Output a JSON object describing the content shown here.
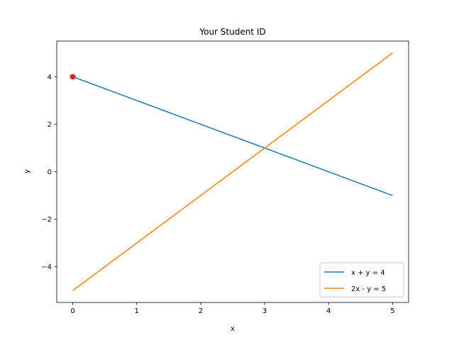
{
  "chart_data": {
    "type": "line",
    "title": "Your Student ID",
    "xlabel": "x",
    "ylabel": "y",
    "xlim": [
      -0.25,
      5.25
    ],
    "ylim": [
      -5.5,
      5.5
    ],
    "xticks": [
      0,
      1,
      2,
      3,
      4,
      5
    ],
    "yticks": [
      -4,
      -2,
      0,
      2,
      4
    ],
    "x_tick_labels": [
      "0",
      "1",
      "2",
      "3",
      "4",
      "5"
    ],
    "y_tick_labels": [
      "−4",
      "−2",
      "0",
      "2",
      "4"
    ],
    "grid": false,
    "legend_position": "lower-right",
    "series": [
      {
        "name": "x + y = 4",
        "color": "#1f77b4",
        "x": [
          0,
          5
        ],
        "y": [
          4,
          -1
        ]
      },
      {
        "name": "2x - y = 5",
        "color": "#ff7f0e",
        "x": [
          0,
          5
        ],
        "y": [
          -5,
          5
        ]
      }
    ],
    "markers": [
      {
        "x": 0,
        "y": 4,
        "color": "#d62728"
      }
    ]
  }
}
